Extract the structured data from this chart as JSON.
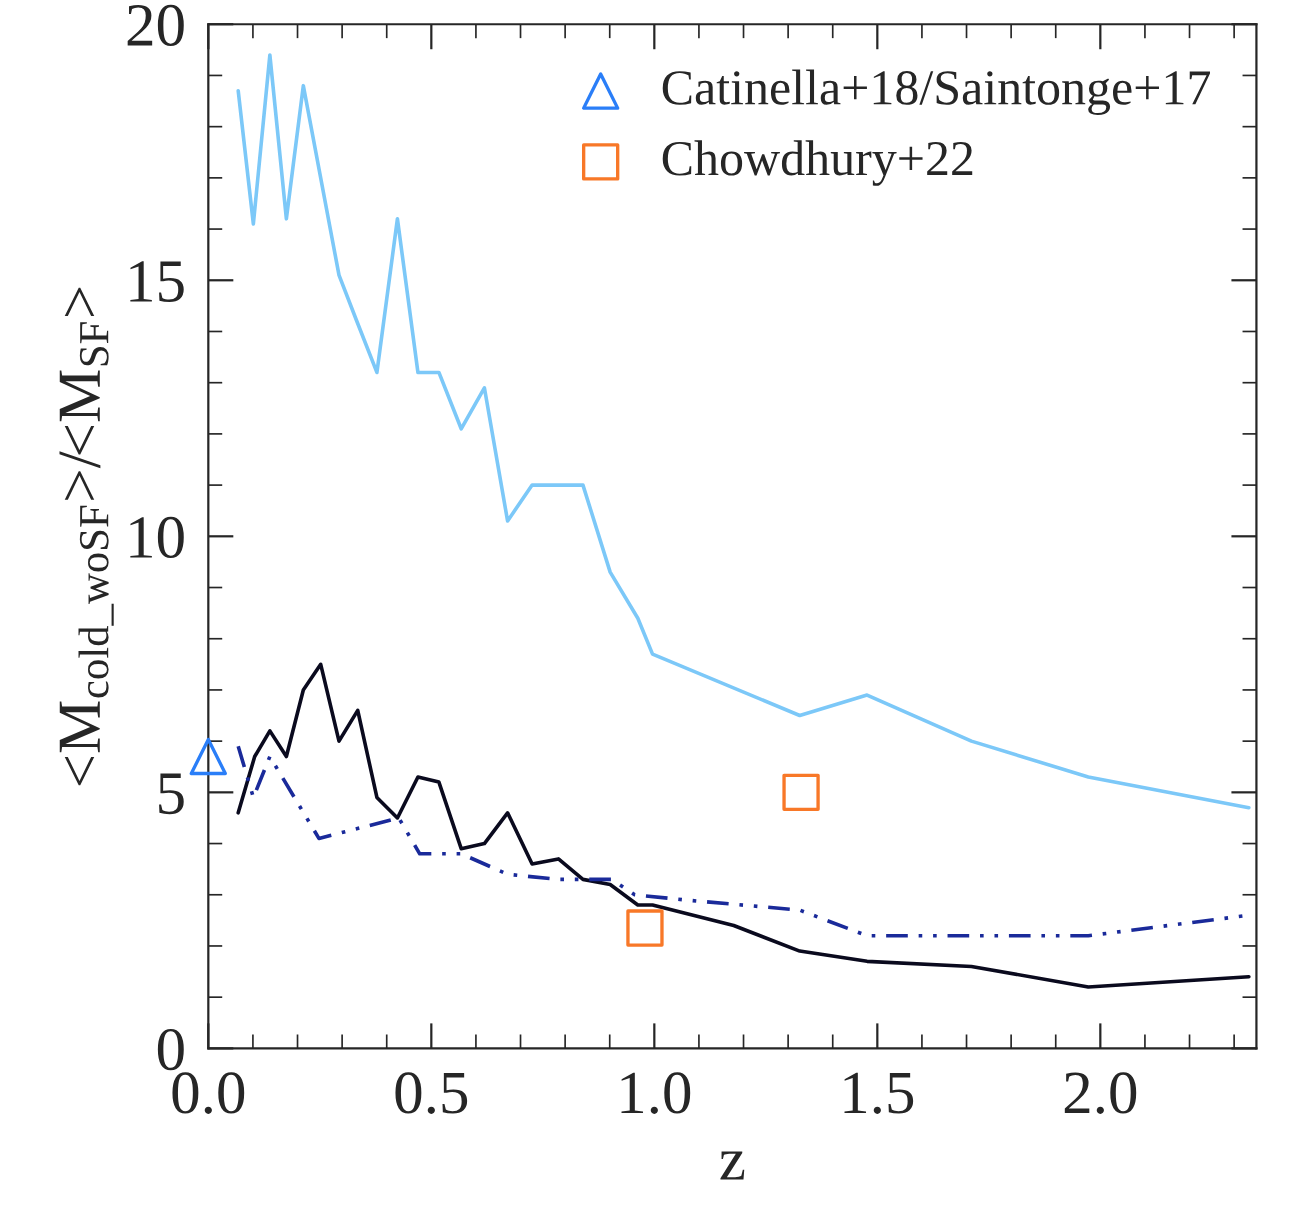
{
  "chart_data": {
    "type": "line",
    "xlabel": "z",
    "ylabel": "<M$_{cold_woSF}$>/<M$_{SF}$>",
    "xlim": [
      0,
      2.35
    ],
    "xticks": [
      {
        "value": 0,
        "label": "0.0"
      },
      {
        "value": 0.5,
        "label": "0.5"
      },
      {
        "value": 1,
        "label": "1.0"
      },
      {
        "value": 1.5,
        "label": "1.5"
      },
      {
        "value": 2,
        "label": "2.0"
      }
    ],
    "ylim": [
      0,
      20
    ],
    "yticks": [
      0,
      5,
      10,
      15,
      20
    ],
    "grid": false,
    "legend": "top right",
    "series": [
      {
        "color": "#7cc8f8",
        "line_style": "solid",
        "x": [
          0.067,
          0.101,
          0.138,
          0.175,
          0.213,
          0.293,
          0.333,
          0.378,
          0.424,
          0.47,
          0.517,
          0.567,
          0.619,
          0.671,
          0.726,
          0.785,
          0.84,
          0.901,
          0.963,
          0.996,
          1.326,
          1.477,
          1.711,
          1.973,
          2.333
        ],
        "values": [
          18.7,
          16.1,
          19.4,
          16.2,
          18.8,
          15.1,
          14.2,
          13.2,
          16.2,
          13.2,
          13.2,
          12.1,
          12.9,
          10.3,
          11.0,
          11.0,
          11.0,
          9.3,
          8.4,
          7.7,
          6.5,
          6.9,
          6.0,
          5.3,
          4.7
        ]
      },
      {
        "color": "#0a0a1e",
        "line_style": "solid",
        "x": [
          0.067,
          0.104,
          0.138,
          0.175,
          0.213,
          0.252,
          0.293,
          0.335,
          0.378,
          0.424,
          0.47,
          0.517,
          0.567,
          0.619,
          0.671,
          0.726,
          0.785,
          0.84,
          0.901,
          0.963,
          0.996,
          1.178,
          1.326,
          1.477,
          1.711,
          1.973,
          2.333
        ],
        "values": [
          4.6,
          5.7,
          6.2,
          5.7,
          7.0,
          7.5,
          6.0,
          6.6,
          4.9,
          4.5,
          5.3,
          5.2,
          3.9,
          4.0,
          4.6,
          3.6,
          3.7,
          3.3,
          3.2,
          2.8,
          2.8,
          2.4,
          1.9,
          1.7,
          1.6,
          1.2,
          1.4
        ]
      },
      {
        "color": "#1a2a9a",
        "line_style": "dashed",
        "x": [
          0.067,
          0.101,
          0.138,
          0.248,
          0.427,
          0.474,
          0.567,
          0.671,
          0.785,
          0.904,
          0.956,
          1.067,
          1.326,
          1.477,
          1.711,
          1.973,
          2.333
        ],
        "values": [
          5.9,
          4.9,
          5.7,
          4.1,
          4.5,
          3.8,
          3.8,
          3.4,
          3.3,
          3.3,
          3.0,
          2.9,
          2.7,
          2.2,
          2.2,
          2.2,
          2.6
        ]
      },
      {
        "type": "scatter",
        "name": "Catinella+18/Saintonge+17",
        "color": "#2a7ef8",
        "marker": "triangle",
        "x": [
          0
        ],
        "values": [
          5.7
        ]
      },
      {
        "type": "scatter",
        "name": "Chowdhury+22",
        "color": "#f87828",
        "marker": "square",
        "x": [
          0.979,
          1.329
        ],
        "values": [
          2.35,
          5.0
        ]
      }
    ]
  }
}
